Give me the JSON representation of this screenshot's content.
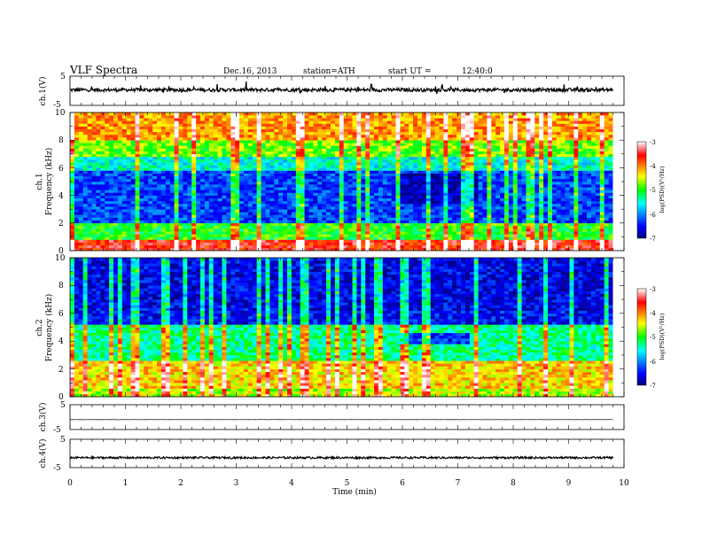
{
  "header": {
    "title": "VLF  Spectra",
    "date": "Dec.16, 2013",
    "station": "station=ATH",
    "start_label": "start  UT  =",
    "start_time": "12:40:0"
  },
  "chart_data": {
    "type": "heatmap",
    "x_axis": {
      "label": "Time  (min)",
      "range": [
        0,
        10
      ],
      "ticks": [
        "0",
        "1",
        "2",
        "3",
        "4",
        "5",
        "6",
        "7",
        "8",
        "9",
        "10"
      ],
      "data_end_min": 9.8
    },
    "panels": [
      {
        "id": "ch1_waveform",
        "type": "line",
        "ylabel": "ch.1(V)",
        "ylim": [
          -5,
          5
        ],
        "yticks": [
          "5",
          "-5"
        ],
        "baseline_v": 0.3,
        "noise_v": 0.6,
        "spike_v": 1.8
      },
      {
        "id": "ch1_spectrogram",
        "type": "heatmap",
        "ylabel_top": "ch.1",
        "ylabel": "Frequency  (kHz)",
        "ylim": [
          0,
          10
        ],
        "yticks": [
          "0",
          "2",
          "4",
          "6",
          "8",
          "10"
        ],
        "colorbar": {
          "label": "log(PSD)(V²/Hz)",
          "ticks": [
            "-3",
            "-4",
            "-5",
            "-6",
            "-7"
          ],
          "range": [
            -7,
            -3
          ]
        },
        "regions": [
          {
            "f": [
              0,
              0.8
            ],
            "log_psd": -3.6
          },
          {
            "f": [
              0.8,
              2.0
            ],
            "log_psd": -5.0
          },
          {
            "f": [
              2.0,
              5.8
            ],
            "log_psd": -6.3
          },
          {
            "f": [
              5.8,
              6.8
            ],
            "log_psd": -5.5
          },
          {
            "f": [
              6.8,
              8.0
            ],
            "log_psd": -4.8
          },
          {
            "f": [
              8.0,
              10.0
            ],
            "log_psd": -4.1
          }
        ],
        "quiet_patch": {
          "t": [
            5.9,
            7.3
          ],
          "f": [
            3.3,
            5.6
          ],
          "log_psd": -6.8
        }
      },
      {
        "id": "ch2_spectrogram",
        "type": "heatmap",
        "ylabel_top": "ch.2",
        "ylabel": "Frequency  (kHz)",
        "ylim": [
          0,
          10
        ],
        "yticks": [
          "0",
          "2",
          "4",
          "6",
          "8",
          "10"
        ],
        "colorbar": {
          "label": "log(PSD)(V²/Hz)",
          "ticks": [
            "-3",
            "-4",
            "-5",
            "-6",
            "-7"
          ],
          "range": [
            -7,
            -3
          ]
        },
        "regions": [
          {
            "f": [
              0,
              0.5
            ],
            "log_psd": -4.6
          },
          {
            "f": [
              0.5,
              2.5
            ],
            "log_psd": -4.3
          },
          {
            "f": [
              2.5,
              5.2
            ],
            "log_psd": -5.3
          },
          {
            "f": [
              5.2,
              6.2
            ],
            "log_psd": -6.5
          },
          {
            "f": [
              6.2,
              10.0
            ],
            "log_psd": -6.6
          }
        ],
        "quiet_patch": {
          "t": [
            5.9,
            7.2
          ],
          "f": [
            3.8,
            4.6
          ],
          "log_psd": -6.4
        }
      },
      {
        "id": "ch3_waveform",
        "type": "line",
        "ylabel": "ch.3(V)",
        "ylim": [
          -5,
          5
        ],
        "yticks": [
          "5",
          "-5"
        ],
        "baseline_v": -1.0,
        "noise_v": 0.05,
        "spike_v": 0
      },
      {
        "id": "ch4_waveform",
        "type": "line",
        "ylabel": "ch.4(V)",
        "ylim": [
          -5,
          5
        ],
        "yticks": [
          "5",
          "-5"
        ],
        "baseline_v": -1.5,
        "noise_v": 0.35,
        "spike_v": 0
      }
    ]
  }
}
